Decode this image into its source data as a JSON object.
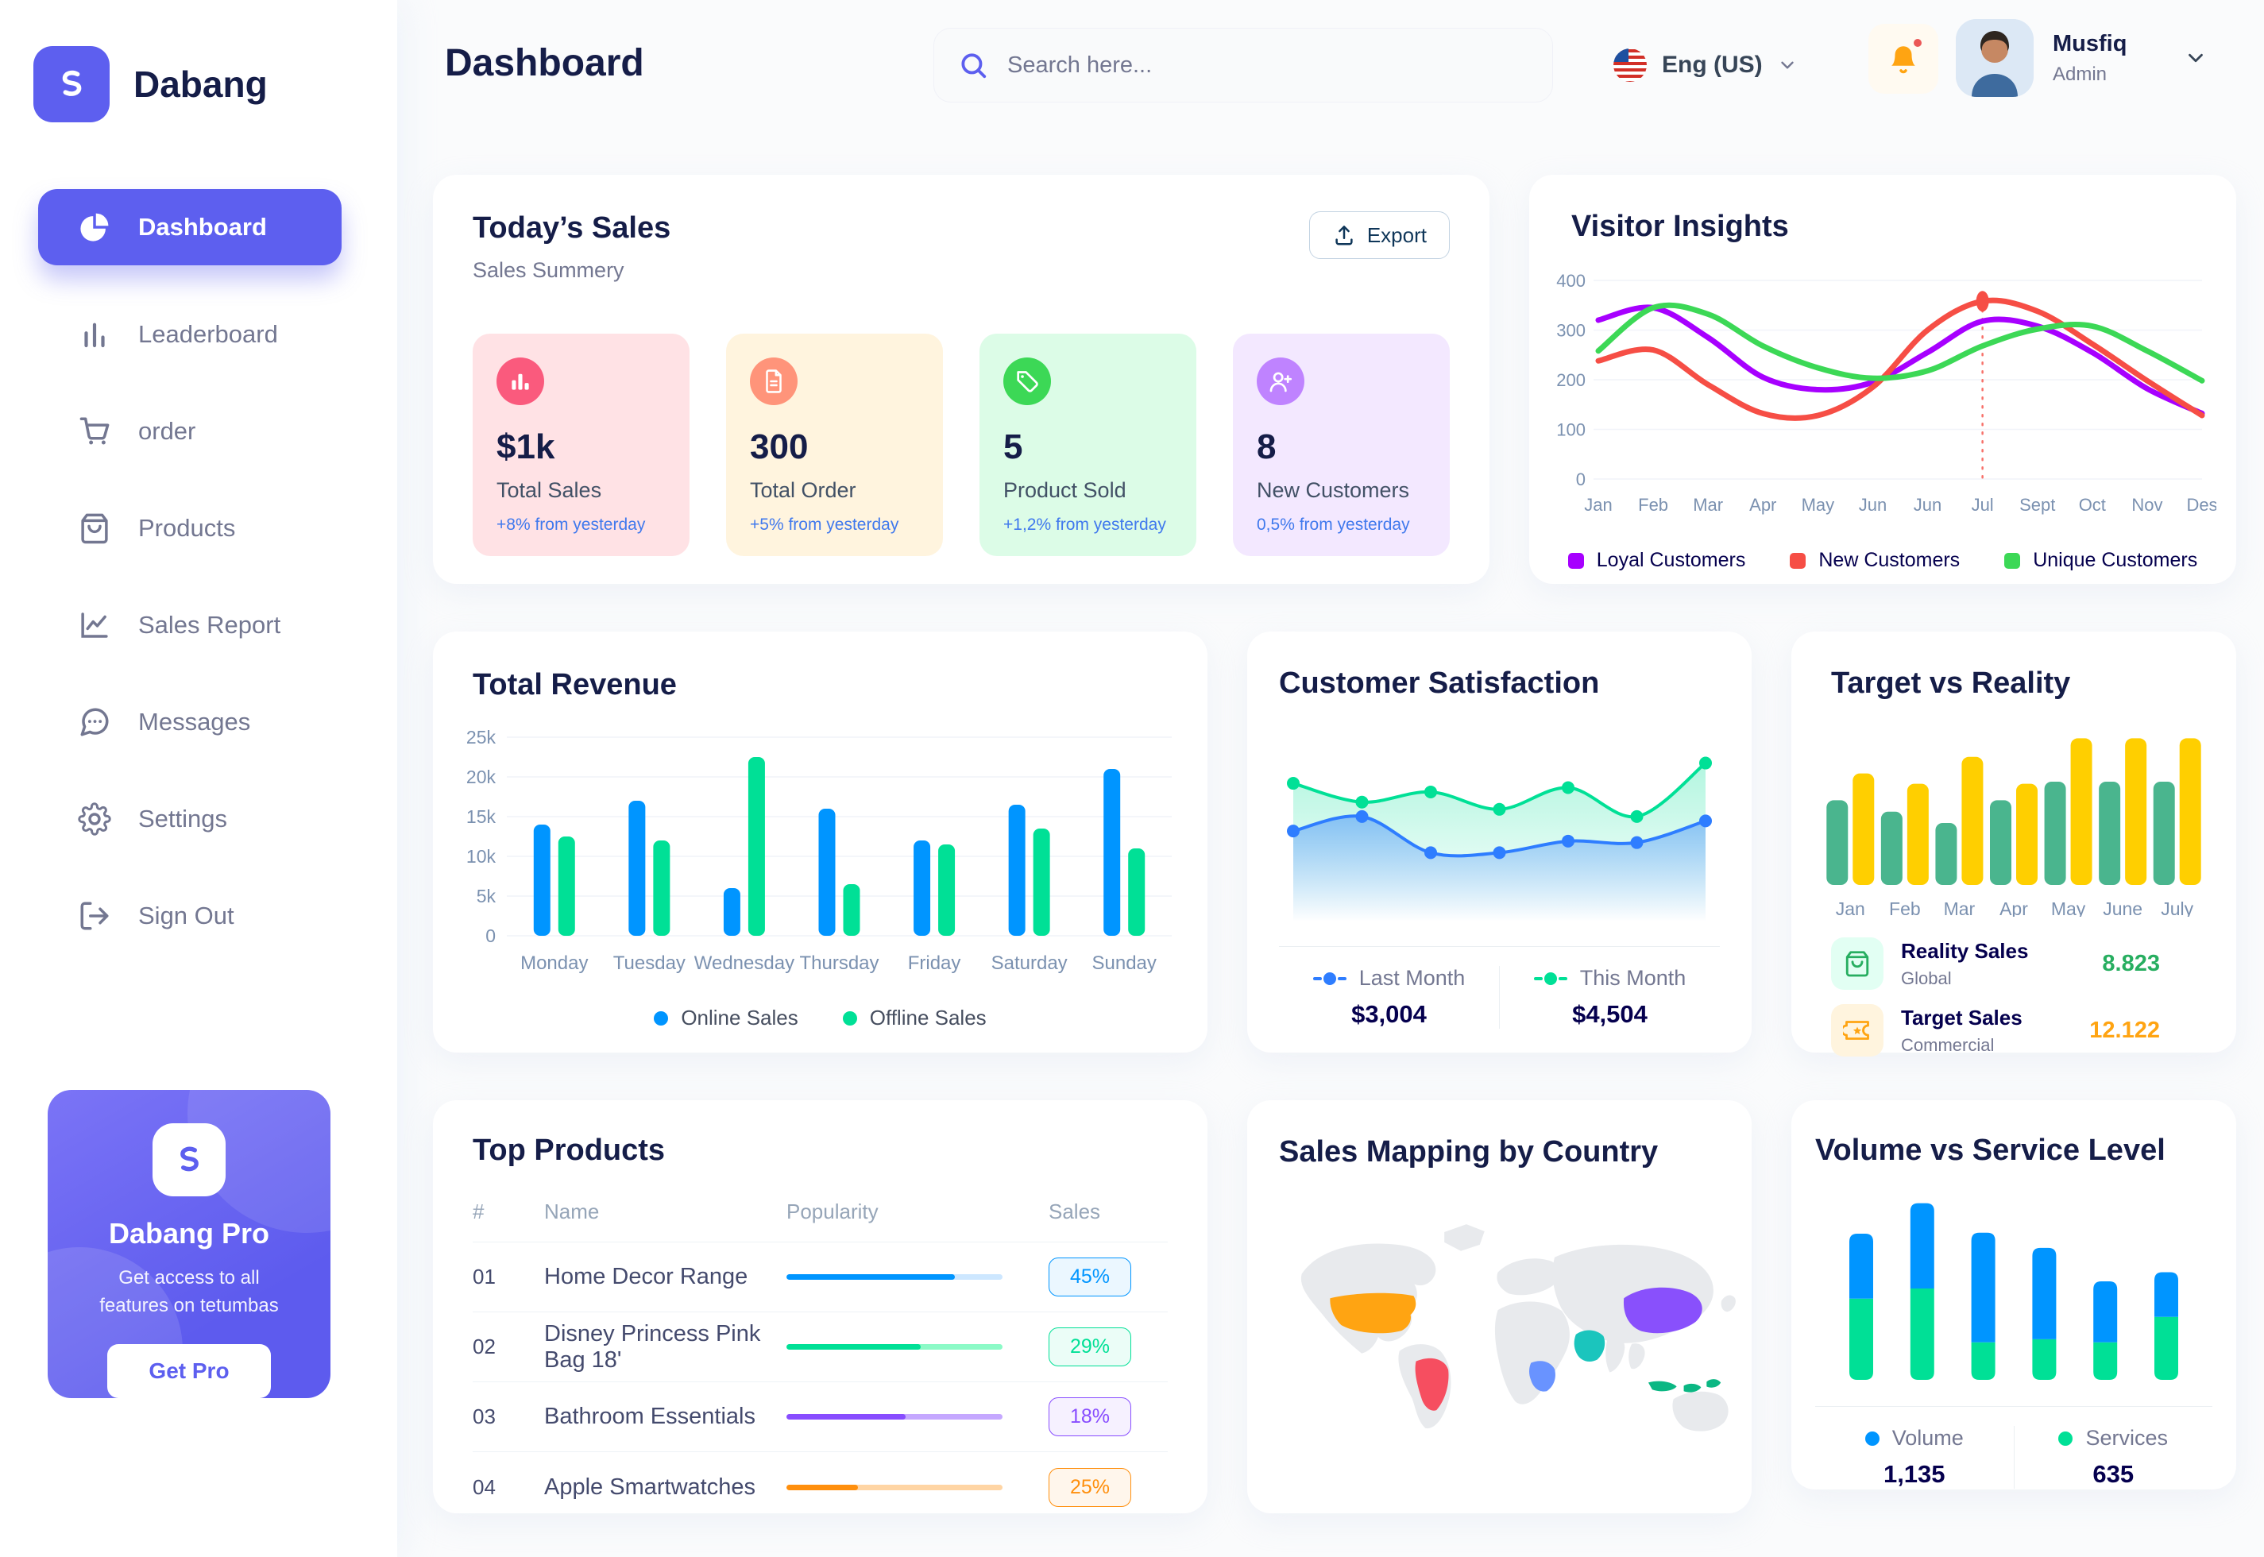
{
  "brand": {
    "name": "Dabang"
  },
  "sidebar": {
    "items": [
      {
        "key": "dashboard",
        "label": "Dashboard",
        "active": true
      },
      {
        "key": "leaderboard",
        "label": "Leaderboard",
        "active": false
      },
      {
        "key": "order",
        "label": "order",
        "active": false
      },
      {
        "key": "products",
        "label": "Products",
        "active": false
      },
      {
        "key": "sales-report",
        "label": "Sales Report",
        "active": false
      },
      {
        "key": "messages",
        "label": "Messages",
        "active": false
      },
      {
        "key": "settings",
        "label": "Settings",
        "active": false
      },
      {
        "key": "sign-out",
        "label": "Sign Out",
        "active": false
      }
    ],
    "promo": {
      "title": "Dabang Pro",
      "subtitle": "Get access to all features on tetumbas",
      "cta": "Get Pro"
    }
  },
  "header": {
    "title": "Dashboard",
    "search_placeholder": "Search here...",
    "language": "Eng (US)",
    "user": {
      "name": "Musfiq",
      "role": "Admin"
    }
  },
  "todays_sales": {
    "title": "Today’s Sales",
    "subtitle": "Sales Summery",
    "export_label": "Export",
    "stats": [
      {
        "value": "$1k",
        "label": "Total Sales",
        "delta": "+8% from yesterday",
        "bg": "#FFE2E5",
        "icon_bg": "#FA5A7D",
        "icon": "chart"
      },
      {
        "value": "300",
        "label": "Total Order",
        "delta": "+5% from yesterday",
        "bg": "#FFF4DE",
        "icon_bg": "#FF947A",
        "icon": "file"
      },
      {
        "value": "5",
        "label": "Product Sold",
        "delta": "+1,2% from yesterday",
        "bg": "#DCFCE7",
        "icon_bg": "#3CD856",
        "icon": "tag"
      },
      {
        "value": "8",
        "label": "New Customers",
        "delta": "0,5% from yesterday",
        "bg": "#F3E8FF",
        "icon_bg": "#BF83FF",
        "icon": "user-plus"
      }
    ]
  },
  "sales_mapping": {
    "title": "Sales Mapping by Country",
    "countries": [
      {
        "key": "usa",
        "name": "United States",
        "color": "#FFA412"
      },
      {
        "key": "brazil",
        "name": "Brazil",
        "color": "#F64E60"
      },
      {
        "key": "china",
        "name": "China",
        "color": "#8950FC"
      },
      {
        "key": "saudi",
        "name": "Saudi Arabia",
        "color": "#1BC5BD"
      },
      {
        "key": "congo",
        "name": "Congo",
        "color": "#6993FF"
      },
      {
        "key": "indonesia",
        "name": "Indonesia",
        "color": "#0BB783"
      }
    ]
  },
  "chart_data": [
    {
      "id": "visitor-insights",
      "type": "line",
      "title": "Visitor Insights",
      "categories": [
        "Jan",
        "Feb",
        "Mar",
        "Apr",
        "May",
        "Jun",
        "Jun",
        "Jul",
        "Sept",
        "Oct",
        "Nov",
        "Des"
      ],
      "ylim": [
        0,
        400
      ],
      "yticks": [
        0,
        100,
        200,
        300,
        400
      ],
      "grid": true,
      "legend_position": "bottom",
      "series": [
        {
          "name": "Loyal Customers",
          "color": "#A700FF",
          "values": [
            320,
            345,
            285,
            205,
            180,
            195,
            255,
            318,
            308,
            255,
            182,
            132
          ]
        },
        {
          "name": "New Customers",
          "color": "#F64E45",
          "values": [
            238,
            260,
            190,
            132,
            128,
            185,
            300,
            358,
            338,
            272,
            198,
            128
          ]
        },
        {
          "name": "Unique Customers",
          "color": "#3CD856",
          "values": [
            258,
            345,
            332,
            268,
            224,
            203,
            218,
            268,
            302,
            308,
            258,
            198
          ]
        }
      ],
      "marker": {
        "series": 1,
        "index": 7
      }
    },
    {
      "id": "total-revenue",
      "type": "bar",
      "title": "Total Revenue",
      "categories": [
        "Monday",
        "Tuesday",
        "Wednesday",
        "Thursday",
        "Friday",
        "Saturday",
        "Sunday"
      ],
      "ylim": [
        0,
        25000
      ],
      "yticks": [
        "0",
        "5k",
        "10k",
        "15k",
        "20k",
        "25k"
      ],
      "grid": true,
      "legend_position": "bottom",
      "series": [
        {
          "name": "Online Sales",
          "color": "#0095FF",
          "values": [
            14000,
            17000,
            6000,
            16000,
            12000,
            16500,
            21000
          ]
        },
        {
          "name": "Offline Sales",
          "color": "#00E096",
          "values": [
            12500,
            12000,
            22500,
            6500,
            11500,
            13500,
            11000
          ]
        }
      ]
    },
    {
      "id": "customer-satisfaction",
      "type": "area",
      "title": "Customer Satisfaction",
      "x": [
        1,
        2,
        3,
        4,
        5,
        6,
        7
      ],
      "ylim": [
        0,
        100
      ],
      "grid": false,
      "legend_position": "bottom",
      "series": [
        {
          "name": "Last Month",
          "color": "#2E7DFF",
          "total": "$3,004",
          "values": [
            45,
            55,
            30,
            30,
            38,
            37,
            52
          ]
        },
        {
          "name": "This Month",
          "color": "#00E096",
          "total": "$4,504",
          "values": [
            78,
            65,
            72,
            60,
            75,
            55,
            92
          ]
        }
      ]
    },
    {
      "id": "target-vs-reality",
      "type": "bar",
      "title": "Target vs Reality",
      "categories": [
        "Jan",
        "Feb",
        "Mar",
        "Apr",
        "May",
        "June",
        "July"
      ],
      "ylim": [
        0,
        15
      ],
      "grid": false,
      "legend_position": "none",
      "series": [
        {
          "name": "Reality Sales",
          "color": "#4AB58E",
          "values": [
            8.2,
            7.1,
            6.0,
            8.2,
            10,
            10,
            10
          ]
        },
        {
          "name": "Target Sales",
          "color": "#FFCF00",
          "values": [
            10.8,
            9.8,
            12.4,
            9.8,
            14.2,
            14.2,
            14.2
          ]
        }
      ],
      "summary": [
        {
          "label": "Reality Sales",
          "sub": "Global",
          "value": "8.823",
          "color": "#27AE60",
          "icon": "bag",
          "icon_bg": "#E2FFF3"
        },
        {
          "label": "Target Sales",
          "sub": "Commercial",
          "value": "12.122",
          "color": "#FFA412",
          "icon": "ticket",
          "icon_bg": "#FFF4DE"
        }
      ]
    },
    {
      "id": "volume-vs-service",
      "type": "stacked-bar",
      "title": "Volume vs Service Level",
      "categories": [
        "1",
        "2",
        "3",
        "4",
        "5",
        "6"
      ],
      "grid": false,
      "legend_position": "bottom",
      "series": [
        {
          "name": "Volume",
          "color": "#0095FF",
          "total": "1,135",
          "values": [
            320,
            420,
            540,
            450,
            300,
            220
          ]
        },
        {
          "name": "Services",
          "color": "#00E096",
          "total": "635",
          "values": [
            400,
            450,
            185,
            200,
            185,
            310
          ]
        }
      ]
    },
    {
      "id": "top-products",
      "type": "table",
      "title": "Top Products",
      "headers": [
        "#",
        "Name",
        "Popularity",
        "Sales"
      ],
      "rows": [
        {
          "num": "01",
          "name": "Home Decor Range",
          "popularity": 78,
          "sales": "45%",
          "color": "#0095FF",
          "track": "#CDE7FF"
        },
        {
          "num": "02",
          "name": "Disney Princess Pink Bag 18'",
          "popularity": 62,
          "sales": "29%",
          "color": "#00E096",
          "track": "#8CFAC7"
        },
        {
          "num": "03",
          "name": "Bathroom Essentials",
          "popularity": 55,
          "sales": "18%",
          "color": "#884DFF",
          "track": "#C5A8FF"
        },
        {
          "num": "04",
          "name": "Apple Smartwatches",
          "popularity": 33,
          "sales": "25%",
          "color": "#FF8F0D",
          "track": "#FFD5A4"
        }
      ]
    }
  ]
}
